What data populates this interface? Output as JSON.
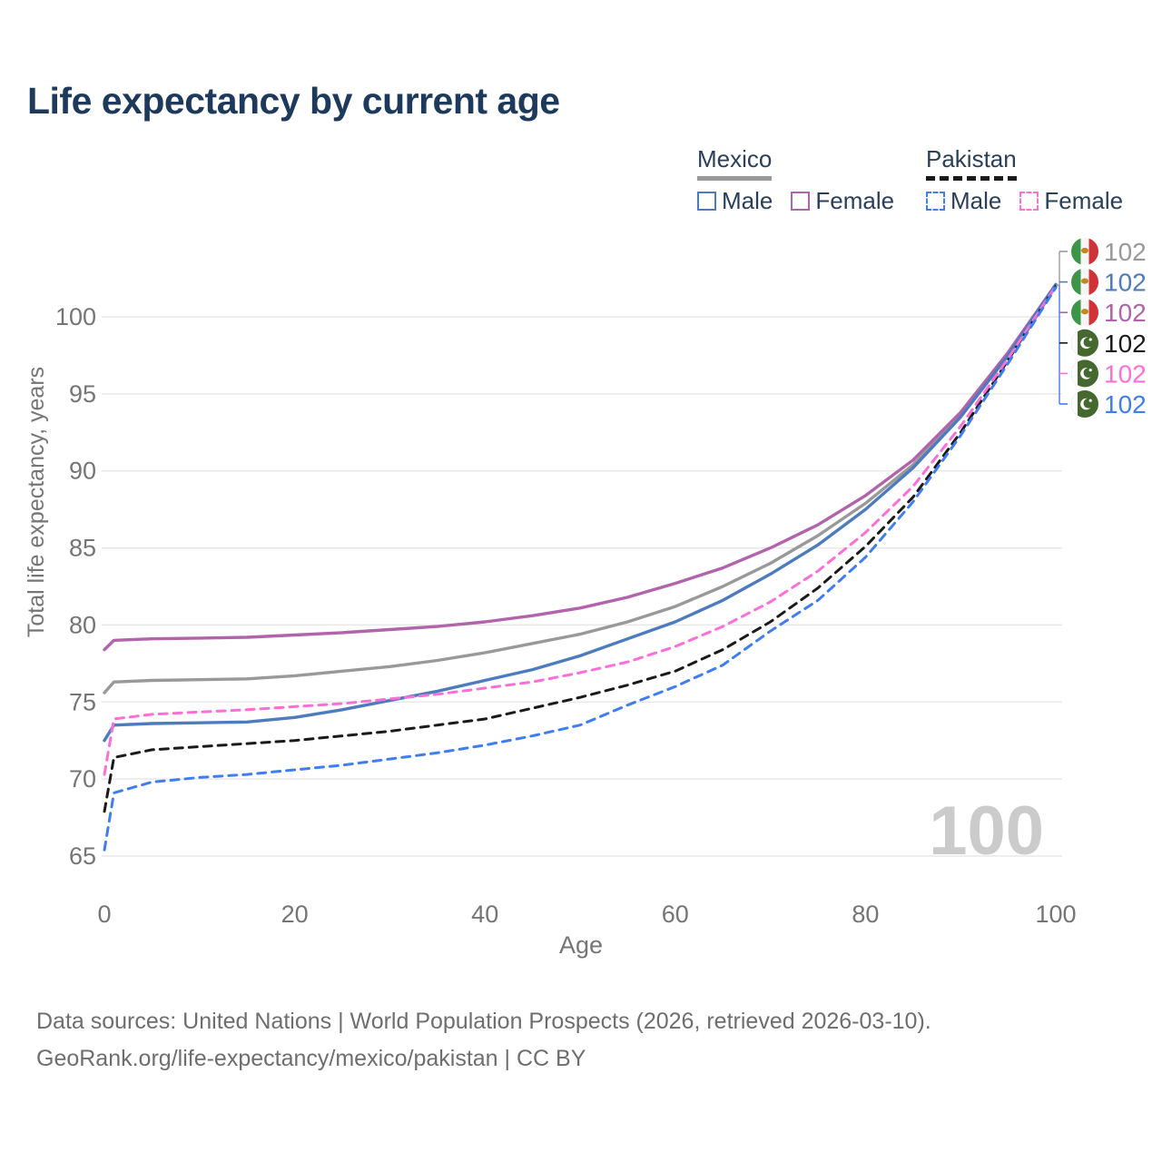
{
  "title": "Life expectancy by current age",
  "legend": {
    "groups": [
      {
        "name": "Mexico",
        "underline_style": "solid",
        "underline_color": "#999999",
        "items": [
          {
            "label": "Male",
            "color": "#4d7cbe",
            "dashed": false
          },
          {
            "label": "Female",
            "color": "#b164ab",
            "dashed": false
          }
        ]
      },
      {
        "name": "Pakistan",
        "underline_style": "dashed",
        "underline_color": "#1a1a1a",
        "items": [
          {
            "label": "Male",
            "color": "#3f7df0",
            "dashed": true
          },
          {
            "label": "Female",
            "color": "#fb6fd8",
            "dashed": true
          }
        ]
      }
    ]
  },
  "chart_data": {
    "type": "line",
    "title": "Life expectancy by current age",
    "xlabel": "Age",
    "ylabel": "Total life expectancy, years",
    "xlim": [
      0,
      100
    ],
    "ylim": [
      65,
      102.5
    ],
    "xticks": [
      0,
      20,
      40,
      60,
      80,
      100
    ],
    "yticks": [
      65,
      70,
      75,
      80,
      85,
      90,
      95,
      100
    ],
    "grid": "horizontal",
    "legend_position": "top-right",
    "age_counter_watermark": "100",
    "x": [
      0,
      1,
      5,
      10,
      15,
      20,
      25,
      30,
      35,
      40,
      45,
      50,
      55,
      60,
      65,
      70,
      75,
      80,
      85,
      90,
      95,
      100
    ],
    "series": [
      {
        "name": "Mexico",
        "group": "Mexico",
        "color": "#999999",
        "dashed": false,
        "values": [
          75.6,
          76.3,
          76.4,
          76.45,
          76.5,
          76.7,
          77.0,
          77.3,
          77.7,
          78.2,
          78.8,
          79.4,
          80.2,
          81.2,
          82.5,
          84.0,
          85.8,
          87.9,
          90.4,
          93.6,
          97.6,
          102.1
        ]
      },
      {
        "name": "Mexico Female",
        "group": "Mexico",
        "color": "#b164ab",
        "dashed": false,
        "values": [
          78.4,
          79.0,
          79.1,
          79.15,
          79.2,
          79.35,
          79.5,
          79.7,
          79.9,
          80.2,
          80.6,
          81.1,
          81.8,
          82.7,
          83.7,
          85.0,
          86.5,
          88.4,
          90.7,
          93.8,
          97.7,
          102.1
        ]
      },
      {
        "name": "Mexico Male",
        "group": "Mexico",
        "color": "#4d7cbe",
        "dashed": false,
        "values": [
          72.5,
          73.5,
          73.6,
          73.65,
          73.7,
          74.0,
          74.5,
          75.1,
          75.7,
          76.4,
          77.1,
          78.0,
          79.1,
          80.2,
          81.6,
          83.3,
          85.2,
          87.5,
          90.2,
          93.5,
          97.5,
          102.1
        ]
      },
      {
        "name": "Pakistan",
        "group": "Pakistan",
        "color": "#1a1a1a",
        "dashed": true,
        "values": [
          67.9,
          71.4,
          71.9,
          72.1,
          72.3,
          72.5,
          72.8,
          73.1,
          73.5,
          73.9,
          74.6,
          75.3,
          76.1,
          77.0,
          78.4,
          80.2,
          82.4,
          85.1,
          88.3,
          92.5,
          97.2,
          102.0
        ]
      },
      {
        "name": "Pakistan Female",
        "group": "Pakistan",
        "color": "#fb6fd8",
        "dashed": true,
        "values": [
          70.3,
          73.9,
          74.2,
          74.35,
          74.5,
          74.7,
          74.9,
          75.2,
          75.5,
          75.9,
          76.3,
          76.9,
          77.6,
          78.6,
          79.9,
          81.5,
          83.5,
          86.0,
          89.0,
          92.9,
          97.3,
          102.0
        ]
      },
      {
        "name": "Pakistan Male",
        "group": "Pakistan",
        "color": "#3f7df0",
        "dashed": true,
        "values": [
          65.4,
          69.1,
          69.8,
          70.1,
          70.3,
          70.6,
          70.9,
          71.3,
          71.7,
          72.2,
          72.8,
          73.5,
          74.8,
          76.0,
          77.4,
          79.6,
          81.6,
          84.4,
          88.0,
          92.3,
          97.0,
          101.9
        ]
      }
    ],
    "end_labels": [
      {
        "flag": "mexico",
        "value": "102",
        "color": "#999999",
        "series": "Mexico"
      },
      {
        "flag": "mexico",
        "value": "102",
        "color": "#4d7cbe",
        "series": "Mexico Male"
      },
      {
        "flag": "mexico",
        "value": "102",
        "color": "#b164ab",
        "series": "Mexico Female"
      },
      {
        "flag": "pakistan",
        "value": "102",
        "color": "#1a1a1a",
        "series": "Pakistan"
      },
      {
        "flag": "pakistan",
        "value": "102",
        "color": "#fb6fd8",
        "series": "Pakistan Female"
      },
      {
        "flag": "pakistan",
        "value": "102",
        "color": "#3f7df0",
        "series": "Pakistan Male"
      }
    ]
  },
  "flag_colors": {
    "mexico_green": "#3d9648",
    "mexico_white": "#f6f6f6",
    "mexico_red": "#cf3338",
    "mexico_emblem": "#c5861f",
    "pakistan_green": "#44682e",
    "pakistan_white": "#ffffff"
  },
  "footer": {
    "line1": "Data sources: United Nations | World Population Prospects (2026, retrieved 2026-03-10).",
    "line2": "GeoRank.org/life-expectancy/mexico/pakistan | CC BY"
  }
}
